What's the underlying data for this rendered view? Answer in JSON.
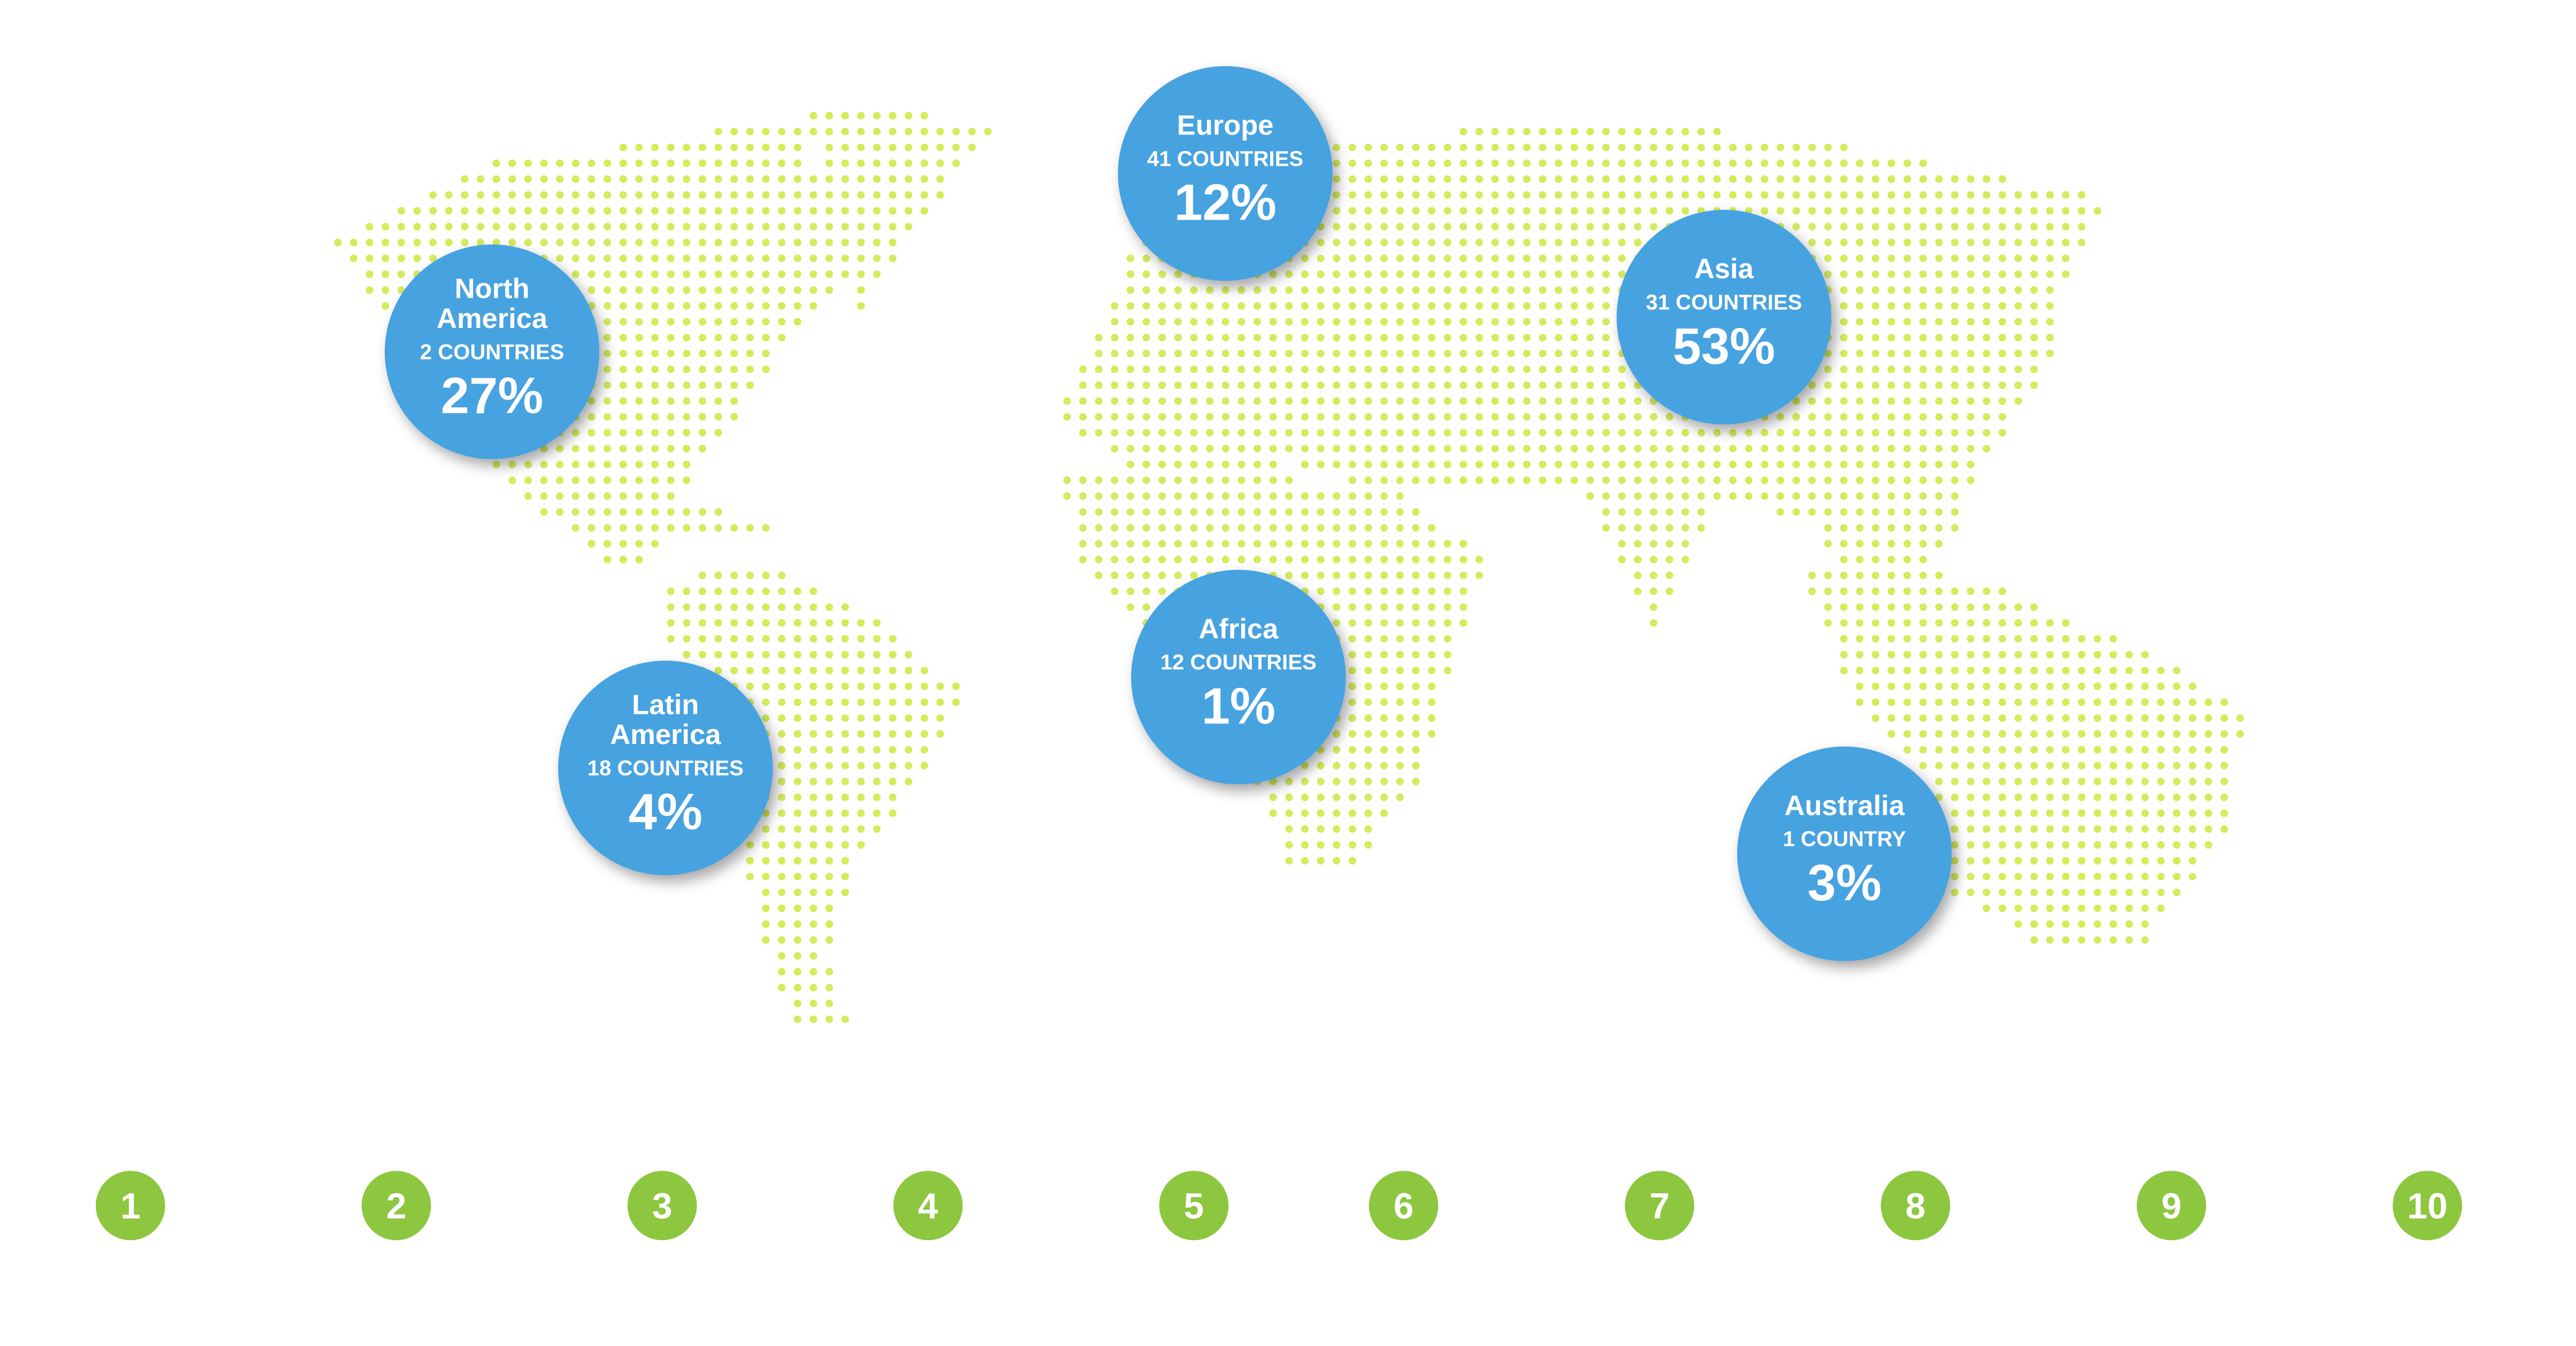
{
  "regions": [
    {
      "name_lines": [
        "Europe"
      ],
      "countries": "41 COUNTRIES",
      "share": "12%"
    },
    {
      "name_lines": [
        "North",
        "America"
      ],
      "countries": "2 COUNTRIES",
      "share": "27%"
    },
    {
      "name_lines": [
        "Asia"
      ],
      "countries": "31 COUNTRIES",
      "share": "53%"
    },
    {
      "name_lines": [
        "Africa"
      ],
      "countries": "12 COUNTRIES",
      "share": "1%"
    },
    {
      "name_lines": [
        "Latin",
        "America"
      ],
      "countries": "18 COUNTRIES",
      "share": "4%"
    },
    {
      "name_lines": [
        "Australia"
      ],
      "countries": "1 COUNTRY",
      "share": "3%"
    }
  ],
  "steps": [
    "1",
    "2",
    "3",
    "4",
    "5",
    "6",
    "7",
    "8",
    "9",
    "10"
  ]
}
